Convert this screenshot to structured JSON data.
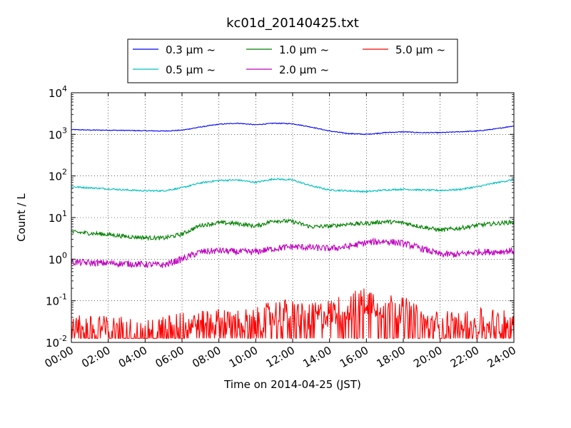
{
  "chart_data": {
    "type": "line",
    "title": "kc01d_20140425.txt",
    "xlabel": "Time on 2014-04-25 (JST)",
    "ylabel": "Count / L",
    "y_scale": "log",
    "ylim": [
      0.01,
      10000
    ],
    "xlim": [
      "00:00",
      "24:00"
    ],
    "x_ticks": [
      "00:00",
      "02:00",
      "04:00",
      "06:00",
      "08:00",
      "10:00",
      "12:00",
      "14:00",
      "16:00",
      "18:00",
      "20:00",
      "22:00",
      "24:00"
    ],
    "y_ticks": [
      {
        "base": "10",
        "exp": "-2"
      },
      {
        "base": "10",
        "exp": "-1"
      },
      {
        "base": "10",
        "exp": "0"
      },
      {
        "base": "10",
        "exp": "1"
      },
      {
        "base": "10",
        "exp": "2"
      },
      {
        "base": "10",
        "exp": "3"
      },
      {
        "base": "10",
        "exp": "4"
      }
    ],
    "grid": true,
    "legend_position": "top-center, outside plot",
    "x_hours": [
      0,
      1,
      2,
      3,
      4,
      5,
      6,
      7,
      8,
      9,
      10,
      11,
      12,
      13,
      14,
      15,
      16,
      17,
      18,
      19,
      20,
      21,
      22,
      23,
      24
    ],
    "series": [
      {
        "name": "0.3 μm ~",
        "color": "#0000ff",
        "noise": 0.01,
        "values": [
          1300,
          1270,
          1260,
          1240,
          1220,
          1200,
          1260,
          1500,
          1750,
          1850,
          1700,
          1850,
          1800,
          1500,
          1200,
          1050,
          1000,
          1100,
          1150,
          1100,
          1100,
          1150,
          1200,
          1350,
          1600
        ]
      },
      {
        "name": "0.5 μm ~",
        "color": "#00bfbf",
        "noise": 0.02,
        "values": [
          55,
          52,
          49,
          46,
          44,
          44,
          52,
          68,
          78,
          80,
          70,
          85,
          80,
          58,
          46,
          44,
          42,
          46,
          48,
          46,
          45,
          47,
          55,
          68,
          82
        ]
      },
      {
        "name": "1.0 μm ~",
        "color": "#008000",
        "noise": 0.05,
        "values": [
          4.5,
          4.2,
          3.9,
          3.5,
          3.3,
          3.2,
          4.0,
          6.5,
          7.5,
          7.2,
          6.2,
          8.5,
          8.0,
          6.0,
          6.2,
          7.0,
          7.2,
          8.0,
          7.5,
          6.0,
          5.0,
          5.5,
          6.5,
          7.2,
          7.8
        ]
      },
      {
        "name": "2.0 μm ~",
        "color": "#bf00bf",
        "noise": 0.08,
        "values": [
          0.85,
          0.82,
          0.8,
          0.78,
          0.75,
          0.72,
          1.0,
          1.5,
          1.6,
          1.5,
          1.5,
          1.8,
          2.0,
          1.9,
          1.8,
          2.0,
          2.5,
          2.7,
          2.4,
          1.8,
          1.3,
          1.3,
          1.5,
          1.5,
          1.6
        ]
      },
      {
        "name": "5.0 μm ~",
        "color": "#ff0000",
        "noise": 0.35,
        "values": [
          0.02,
          0.02,
          0.02,
          0.02,
          0.015,
          0.02,
          0.025,
          0.03,
          0.03,
          0.03,
          0.03,
          0.05,
          0.05,
          0.04,
          0.05,
          0.07,
          0.1,
          0.08,
          0.06,
          0.03,
          0.025,
          0.03,
          0.03,
          0.03,
          0.03
        ]
      }
    ]
  }
}
